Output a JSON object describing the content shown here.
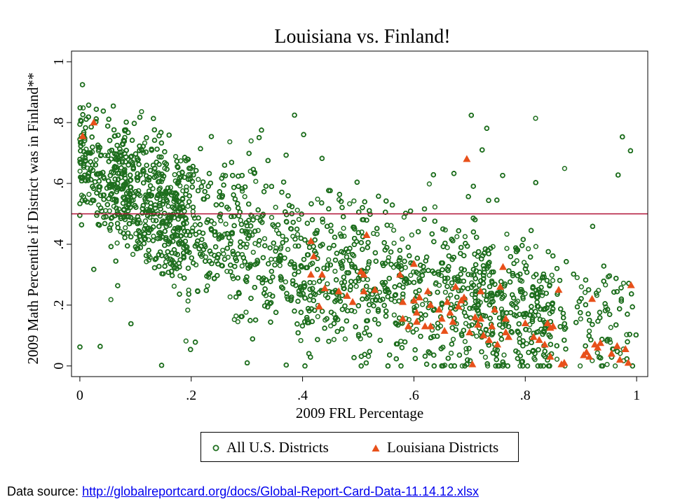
{
  "colors": {
    "us_marker": "#1f6f1f",
    "la_marker": "#e8501a",
    "reference_line": "#b01237",
    "axis": "#000000"
  },
  "chart_data": {
    "type": "scatter",
    "title": "Louisiana vs. Finland!",
    "xlabel": "2009 FRL Percentage",
    "ylabel": "2009 Math Percentile if District was in Finland**",
    "xlim": [
      -0.015,
      1.02
    ],
    "ylim": [
      -0.035,
      1.035
    ],
    "xticks": [
      0,
      0.2,
      0.4,
      0.6,
      0.8,
      1
    ],
    "xtick_labels": [
      "0",
      ".2",
      ".4",
      ".6",
      ".8",
      "1"
    ],
    "yticks": [
      0,
      0.2,
      0.4,
      0.6,
      0.8,
      1
    ],
    "ytick_labels": [
      "0",
      ".2",
      ".4",
      ".6",
      ".8",
      "1"
    ],
    "reference_line_y": 0.5,
    "legend_position": "bottom",
    "series": [
      {
        "name": "All U.S. Districts",
        "marker": "hollow-circle",
        "trend": "decreasing",
        "approx_count": 9000,
        "x_range": [
          0,
          1
        ],
        "y_at_x0": 0.68,
        "y_at_x1": 0.1
      },
      {
        "name": "Louisiana Districts",
        "marker": "filled-triangle",
        "points": [
          {
            "x": 0.005,
            "y": 0.755
          },
          {
            "x": 0.025,
            "y": 0.8
          },
          {
            "x": 0.415,
            "y": 0.41
          },
          {
            "x": 0.42,
            "y": 0.36
          },
          {
            "x": 0.415,
            "y": 0.3
          },
          {
            "x": 0.435,
            "y": 0.3
          },
          {
            "x": 0.44,
            "y": 0.255
          },
          {
            "x": 0.43,
            "y": 0.195
          },
          {
            "x": 0.465,
            "y": 0.245
          },
          {
            "x": 0.48,
            "y": 0.23
          },
          {
            "x": 0.49,
            "y": 0.21
          },
          {
            "x": 0.505,
            "y": 0.31
          },
          {
            "x": 0.51,
            "y": 0.3
          },
          {
            "x": 0.51,
            "y": 0.245
          },
          {
            "x": 0.515,
            "y": 0.43
          },
          {
            "x": 0.53,
            "y": 0.25
          },
          {
            "x": 0.575,
            "y": 0.3
          },
          {
            "x": 0.58,
            "y": 0.21
          },
          {
            "x": 0.58,
            "y": 0.155
          },
          {
            "x": 0.59,
            "y": 0.13
          },
          {
            "x": 0.6,
            "y": 0.335
          },
          {
            "x": 0.6,
            "y": 0.215
          },
          {
            "x": 0.605,
            "y": 0.175
          },
          {
            "x": 0.61,
            "y": 0.225
          },
          {
            "x": 0.605,
            "y": 0.145
          },
          {
            "x": 0.62,
            "y": 0.13
          },
          {
            "x": 0.625,
            "y": 0.245
          },
          {
            "x": 0.63,
            "y": 0.2
          },
          {
            "x": 0.63,
            "y": 0.13
          },
          {
            "x": 0.645,
            "y": 0.185
          },
          {
            "x": 0.65,
            "y": 0.155
          },
          {
            "x": 0.655,
            "y": 0.115
          },
          {
            "x": 0.66,
            "y": 0.21
          },
          {
            "x": 0.665,
            "y": 0.175
          },
          {
            "x": 0.67,
            "y": 0.145
          },
          {
            "x": 0.675,
            "y": 0.26
          },
          {
            "x": 0.68,
            "y": 0.195
          },
          {
            "x": 0.685,
            "y": 0.215
          },
          {
            "x": 0.69,
            "y": 0.225
          },
          {
            "x": 0.695,
            "y": 0.68
          },
          {
            "x": 0.7,
            "y": 0.11
          },
          {
            "x": 0.705,
            "y": 0.005
          },
          {
            "x": 0.71,
            "y": 0.16
          },
          {
            "x": 0.715,
            "y": 0.135
          },
          {
            "x": 0.72,
            "y": 0.245
          },
          {
            "x": 0.72,
            "y": 0.155
          },
          {
            "x": 0.725,
            "y": 0.1
          },
          {
            "x": 0.735,
            "y": 0.085
          },
          {
            "x": 0.74,
            "y": 0.13
          },
          {
            "x": 0.745,
            "y": 0.185
          },
          {
            "x": 0.75,
            "y": 0.07
          },
          {
            "x": 0.755,
            "y": 0.26
          },
          {
            "x": 0.76,
            "y": 0.325
          },
          {
            "x": 0.765,
            "y": 0.155
          },
          {
            "x": 0.765,
            "y": 0.11
          },
          {
            "x": 0.77,
            "y": 0.095
          },
          {
            "x": 0.8,
            "y": 0.14
          },
          {
            "x": 0.815,
            "y": 0.095
          },
          {
            "x": 0.825,
            "y": 0.085
          },
          {
            "x": 0.835,
            "y": 0.07
          },
          {
            "x": 0.84,
            "y": 0.14
          },
          {
            "x": 0.845,
            "y": 0.125
          },
          {
            "x": 0.845,
            "y": 0.03
          },
          {
            "x": 0.85,
            "y": 0.13
          },
          {
            "x": 0.86,
            "y": 0.25
          },
          {
            "x": 0.865,
            "y": 0.005
          },
          {
            "x": 0.87,
            "y": 0.01
          },
          {
            "x": 0.905,
            "y": 0.035
          },
          {
            "x": 0.91,
            "y": 0.045
          },
          {
            "x": 0.915,
            "y": 0.03
          },
          {
            "x": 0.92,
            "y": 0.22
          },
          {
            "x": 0.925,
            "y": 0.07
          },
          {
            "x": 0.93,
            "y": 0.06
          },
          {
            "x": 0.935,
            "y": 0.075
          },
          {
            "x": 0.955,
            "y": 0.04
          },
          {
            "x": 0.965,
            "y": 0.065
          },
          {
            "x": 0.97,
            "y": 0.02
          },
          {
            "x": 0.98,
            "y": 0.055
          },
          {
            "x": 0.985,
            "y": 0.01
          },
          {
            "x": 0.99,
            "y": 0.265
          }
        ]
      }
    ]
  },
  "legend": {
    "us_label": "All U.S. Districts",
    "la_label": "Louisiana Districts"
  },
  "footer": {
    "source_prefix": "Data source:",
    "source_url": "http://globalreportcard.org/docs/Global-Report-Card-Data-11.14.12.xlsx"
  }
}
